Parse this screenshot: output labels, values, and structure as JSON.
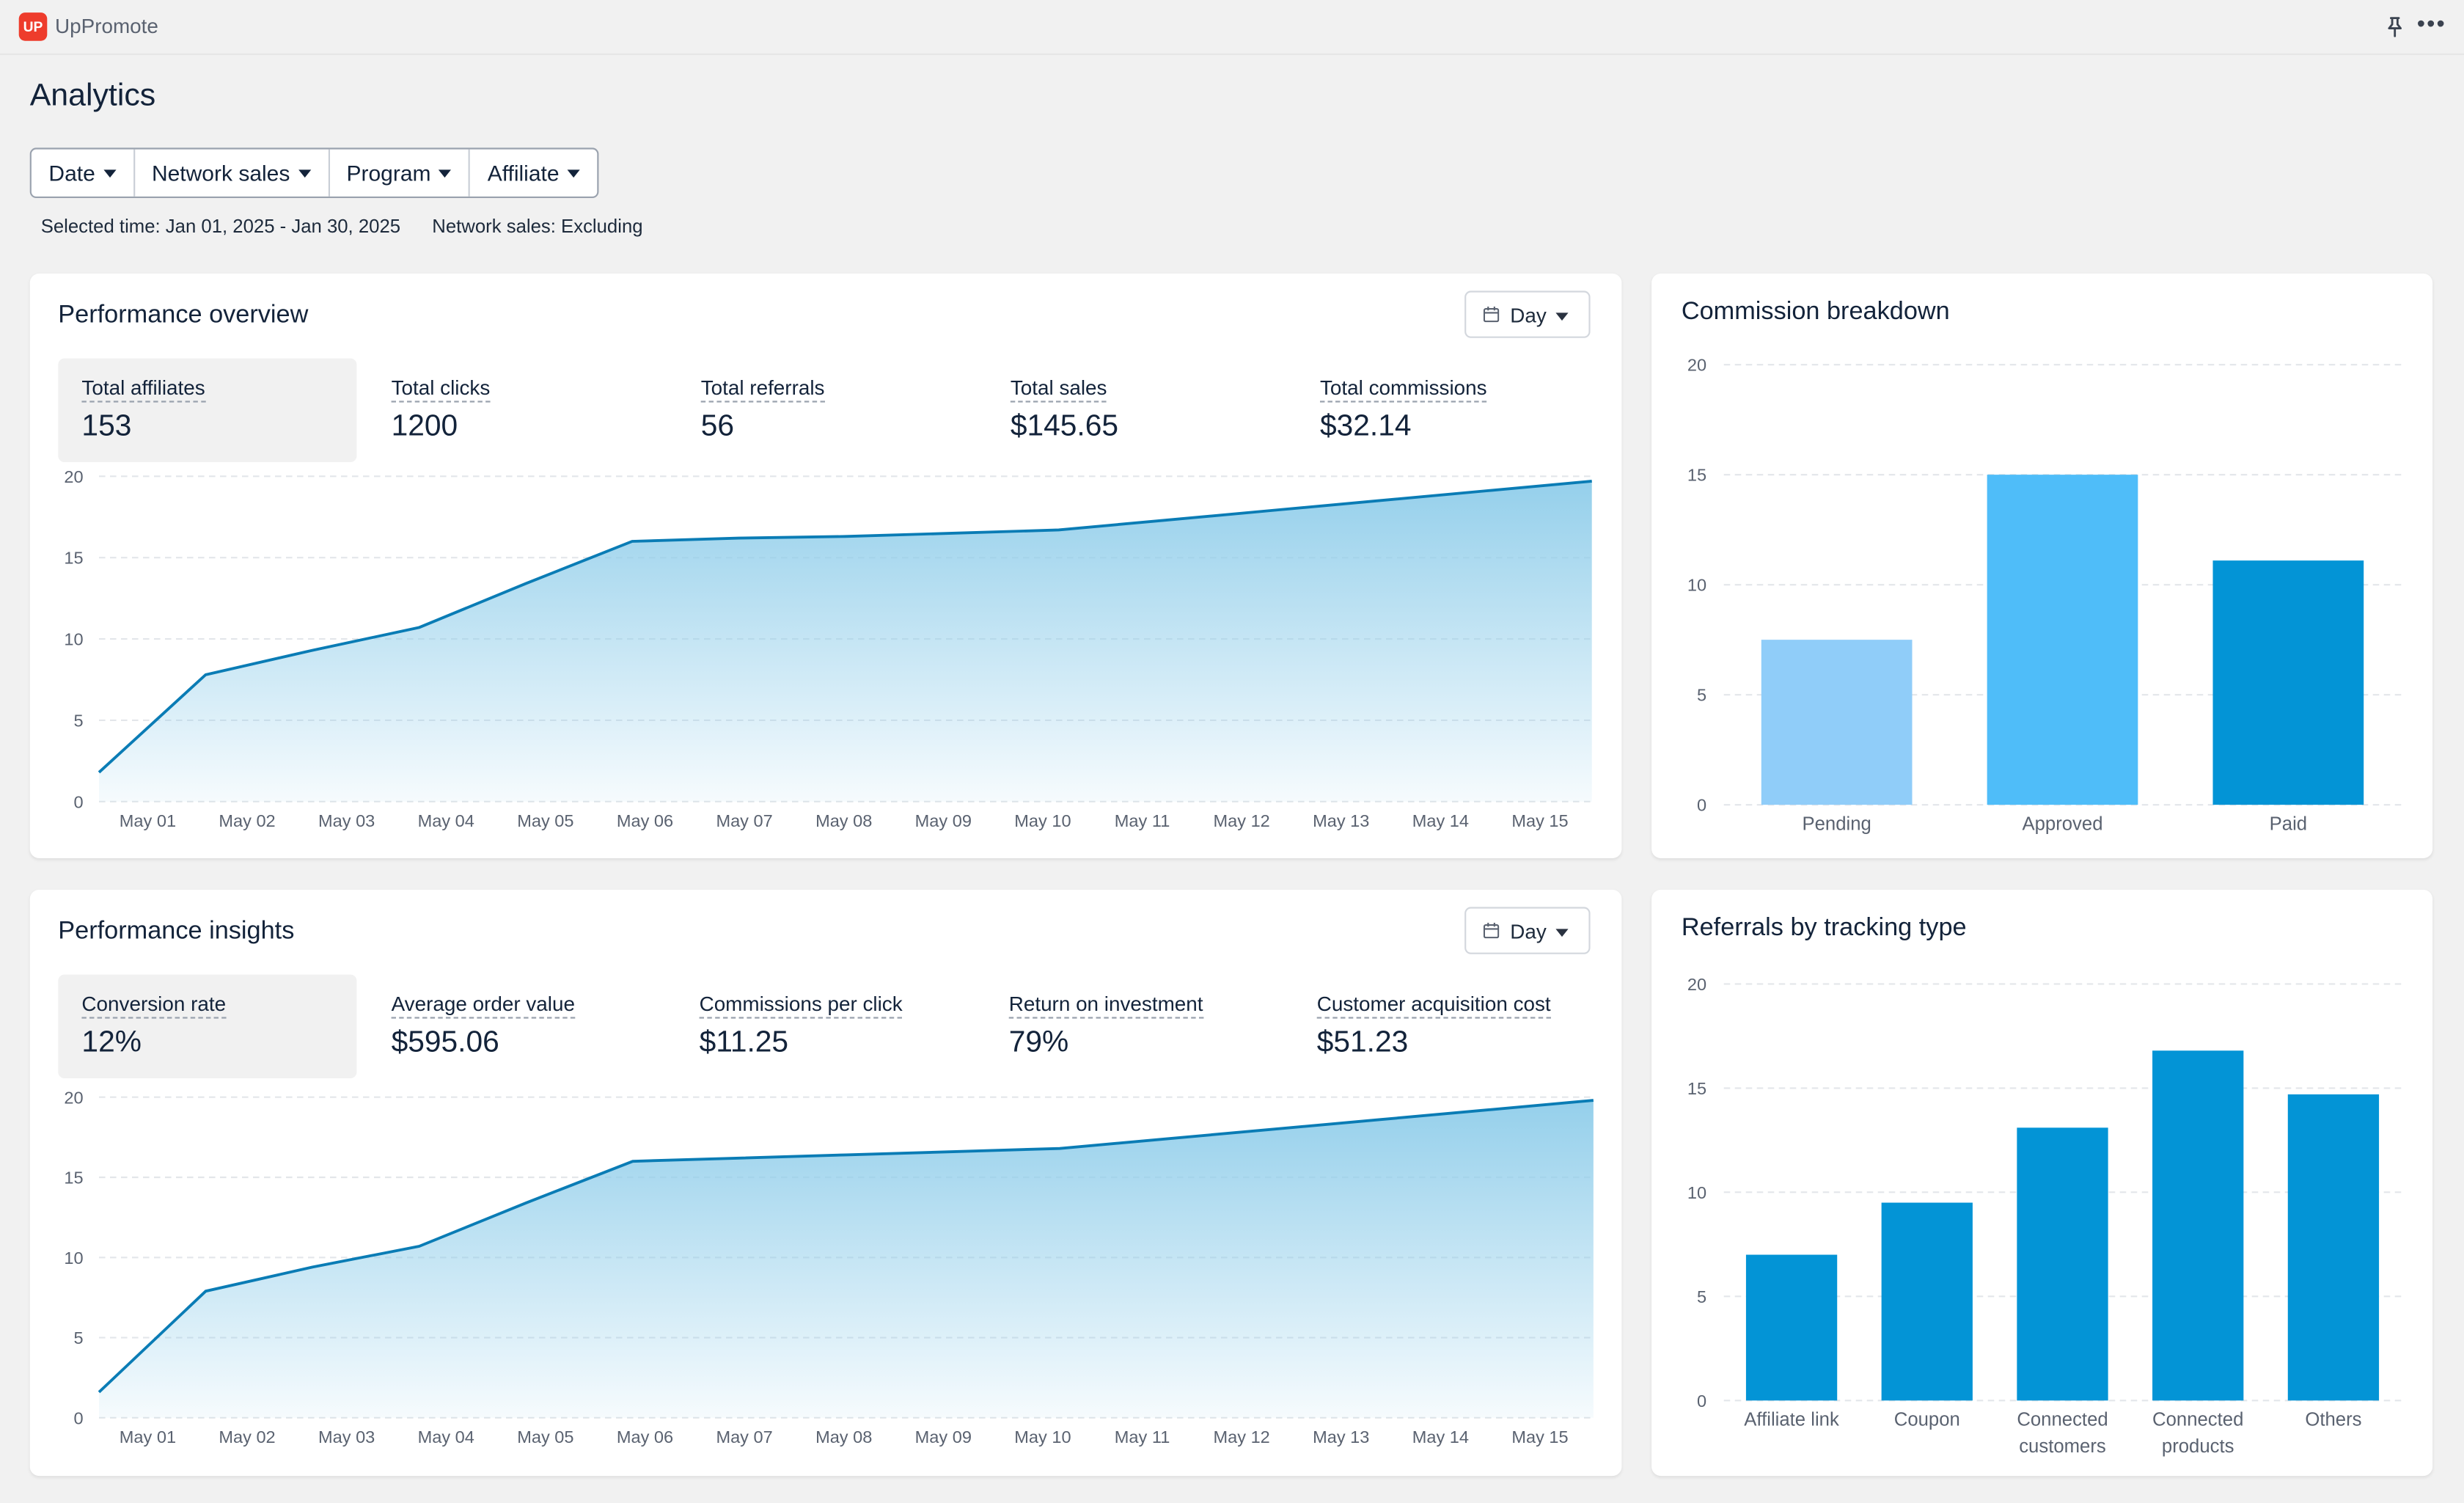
{
  "app": {
    "name": "UpPromote",
    "logo_text": "UP"
  },
  "page": {
    "title": "Analytics"
  },
  "filters": [
    {
      "label": "Date"
    },
    {
      "label": "Network sales"
    },
    {
      "label": "Program"
    },
    {
      "label": "Affiliate"
    }
  ],
  "selection": {
    "time": "Selected time: Jan 01, 2025 - Jan 30, 2025",
    "network": "Network sales: Excluding"
  },
  "performance_overview": {
    "title": "Performance overview",
    "period_label": "Day",
    "metrics": [
      {
        "label": "Total affiliates",
        "value": "153",
        "active": true
      },
      {
        "label": "Total clicks",
        "value": "1200"
      },
      {
        "label": "Total referrals",
        "value": "56"
      },
      {
        "label": "Total sales",
        "value": "$145.65"
      },
      {
        "label": "Total commissions",
        "value": "$32.14"
      }
    ]
  },
  "performance_insights": {
    "title": "Performance insights",
    "period_label": "Day",
    "metrics": [
      {
        "label": "Conversion rate",
        "value": "12%",
        "active": true
      },
      {
        "label": "Average order value",
        "value": "$595.06"
      },
      {
        "label": "Commissions per click",
        "value": "$11.25"
      },
      {
        "label": "Return on investment",
        "value": "79%"
      },
      {
        "label": "Customer acquisition cost",
        "value": "$51.23"
      }
    ]
  },
  "commission_breakdown": {
    "title": "Commission breakdown"
  },
  "referrals_by_tracking": {
    "title": "Referrals by tracking type"
  },
  "colors": {
    "line": "#0a7cb5",
    "area_top": "#8fcdea",
    "pending": "#90cdf9",
    "approved": "#4fbdf9",
    "paid": "#0394d6",
    "tracking_bar": "#0394d6"
  },
  "chart_data": [
    {
      "id": "overview",
      "type": "area",
      "x": [
        "May 01",
        "May 02",
        "May 03",
        "May 04",
        "May 05",
        "May 06",
        "May 07",
        "May 08",
        "May 09",
        "May 10",
        "May 11",
        "May 12",
        "May 13",
        "May 14",
        "May 15"
      ],
      "values": [
        1.8,
        7.8,
        9.3,
        10.7,
        13.4,
        16.0,
        16.2,
        16.3,
        16.5,
        16.7,
        17.3,
        17.9,
        18.5,
        19.1,
        19.7
      ],
      "ylim": [
        0,
        20
      ],
      "yticks": [
        0,
        5,
        10,
        15,
        20
      ],
      "grid": true
    },
    {
      "id": "insights",
      "type": "area",
      "x": [
        "May 01",
        "May 02",
        "May 03",
        "May 04",
        "May 05",
        "May 06",
        "May 07",
        "May 08",
        "May 09",
        "May 10",
        "May 11",
        "May 12",
        "May 13",
        "May 14",
        "May 15"
      ],
      "values": [
        1.6,
        7.9,
        9.4,
        10.7,
        13.4,
        16.0,
        16.2,
        16.4,
        16.6,
        16.8,
        17.4,
        18.0,
        18.6,
        19.2,
        19.8
      ],
      "ylim": [
        0,
        20
      ],
      "yticks": [
        0,
        5,
        10,
        15,
        20
      ],
      "grid": true
    },
    {
      "id": "commission",
      "type": "bar",
      "categories": [
        "Pending",
        "Approved",
        "Paid"
      ],
      "values": [
        7.5,
        15.0,
        11.1
      ],
      "ylim": [
        0,
        20
      ],
      "yticks": [
        0,
        5,
        10,
        15,
        20
      ],
      "grid": true
    },
    {
      "id": "tracking",
      "type": "bar",
      "categories": [
        [
          "Affiliate link"
        ],
        [
          "Coupon"
        ],
        [
          "Connected",
          "customers"
        ],
        [
          "Connected",
          "products"
        ],
        [
          "Others"
        ]
      ],
      "values": [
        7.0,
        9.5,
        13.1,
        16.8,
        14.7
      ],
      "ylim": [
        0,
        20
      ],
      "yticks": [
        0,
        5,
        10,
        15,
        20
      ],
      "grid": true
    }
  ]
}
